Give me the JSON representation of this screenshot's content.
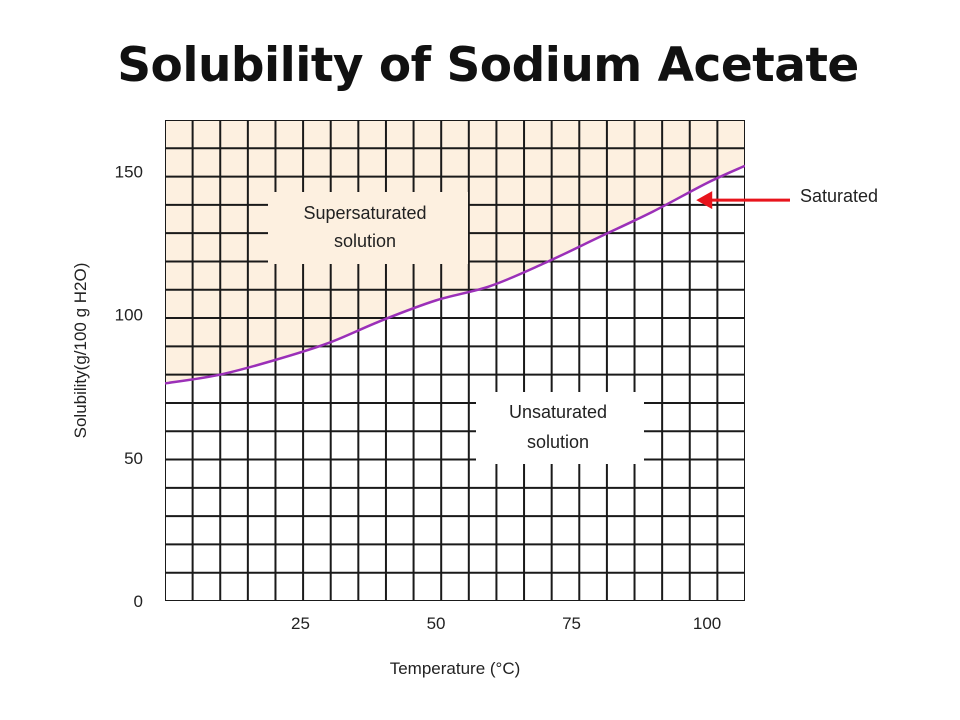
{
  "chart_data": {
    "type": "line",
    "title": "Solubility of Sodium Acetate",
    "xlabel": "Temperature (°C)",
    "ylabel": "Solubility(g/100 g H2O)",
    "xlim": [
      0,
      107
    ],
    "ylim": [
      0,
      168
    ],
    "x_ticks": [
      "25",
      "50",
      "75",
      "100"
    ],
    "y_ticks": [
      "0",
      "50",
      "100",
      "150"
    ],
    "grid": true,
    "series": [
      {
        "name": "Saturated",
        "color": "#9b30b8",
        "x": [
          0,
          10,
          20,
          30,
          40,
          50,
          60,
          70,
          80,
          90,
          100,
          107
        ],
        "y": [
          76,
          79,
          84,
          90,
          98,
          105,
          110,
          118,
          127,
          136,
          146,
          152
        ]
      }
    ],
    "supersaturated_fill": "#fdf0e0",
    "annotations": {
      "supersaturated": [
        "Supersaturated",
        "solution"
      ],
      "unsaturated": [
        "Unsaturated",
        "solution"
      ],
      "saturated": "Saturated",
      "arrow_color": "#e8141c",
      "arrow_target": {
        "x": 98,
        "y": 140
      }
    }
  }
}
